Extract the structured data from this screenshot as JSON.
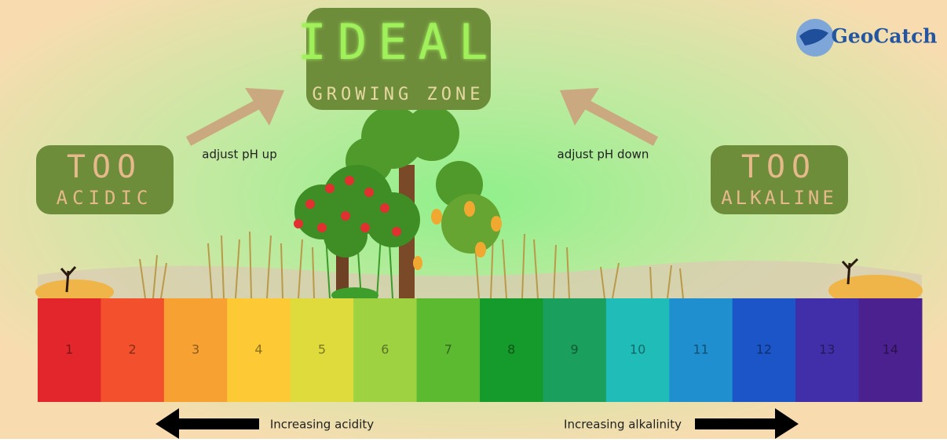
{
  "logo": "GeoCatch",
  "ideal": {
    "title": "IDEAL",
    "subtitle": "GROWING ZONE"
  },
  "acidic": {
    "top": "TOO",
    "bottom": "ACIDIC"
  },
  "alkaline": {
    "top": "TOO",
    "bottom": "ALKALINE"
  },
  "adjust_up": "adjust pH up",
  "adjust_down": "adjust pH down",
  "scale": {
    "labels": [
      "1",
      "2",
      "3",
      "4",
      "5",
      "6",
      "7",
      "8",
      "9",
      "10",
      "11",
      "12",
      "13",
      "14"
    ],
    "colors": [
      "#e3262b",
      "#f3502d",
      "#f8a133",
      "#fdc934",
      "#dfdb3c",
      "#9ed240",
      "#5bba30",
      "#159b2b",
      "#1aa05c",
      "#20bdb8",
      "#1f8fd0",
      "#1b55c8",
      "#402fa8",
      "#4b208f"
    ]
  },
  "left_arrow": "Increasing acidity",
  "right_arrow": "Increasing alkalinity"
}
